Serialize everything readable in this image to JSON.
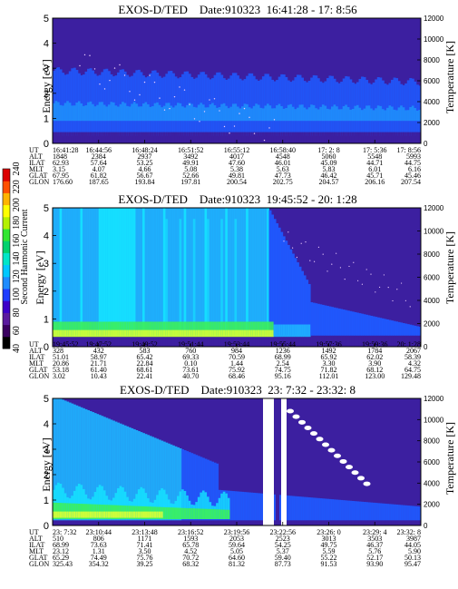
{
  "colorbar": {
    "label": "Second Harmonic Current",
    "ticks": [
      "40",
      "60",
      "80",
      "100",
      "120",
      "140",
      "160",
      "180",
      "200",
      "220",
      "240"
    ],
    "colors": [
      "#000000",
      "#3a0060",
      "#5a1a9e",
      "#3c00c8",
      "#1e3cff",
      "#1e8cff",
      "#00c8ff",
      "#00e6c8",
      "#00d26e",
      "#32e632",
      "#b4f000",
      "#ffff00",
      "#ffb400",
      "#ff5000",
      "#dc0000"
    ]
  },
  "palette": {
    "background": "#3c1fa0",
    "mid": "#1f5aff",
    "light": "#1eb4ff",
    "cyan": "#14e6ff",
    "green": "#3cf05a",
    "yellow": "#e6ff32",
    "white": "#ffffff"
  },
  "table_row_labels": [
    "UT",
    "ALT",
    "ILAT",
    "MLT",
    "GLAT",
    "GLON"
  ],
  "chart_data": [
    {
      "type": "heatmap",
      "title": "EXOS-D/TED    Date:910323  16:41:28 - 17: 8:56",
      "ylabel": "Energy [eV]",
      "y2label": "Temperature [K]",
      "ylim": [
        0,
        5
      ],
      "yticks": [
        "0",
        "1",
        "2",
        "3",
        "4",
        "5"
      ],
      "y2lim": [
        0,
        12000
      ],
      "y2ticks": [
        "0",
        "2000",
        "4000",
        "6000",
        "8000",
        "10000",
        "12000"
      ],
      "columns": [
        {
          "UT": "16:41:28",
          "ALT": "1848",
          "ILAT": "62.93",
          "MLT": "3.15",
          "GLAT": "67.95",
          "GLON": "176.60"
        },
        {
          "UT": "16:44:56",
          "ALT": "2384",
          "ILAT": "57.64",
          "MLT": "4.07",
          "GLAT": "61.82",
          "GLON": "187.65"
        },
        {
          "UT": "16:48:24",
          "ALT": "2937",
          "ILAT": "53.25",
          "MLT": "4.66",
          "GLAT": "56.67",
          "GLON": "193.84"
        },
        {
          "UT": "16:51:52",
          "ALT": "3492",
          "ILAT": "49.91",
          "MLT": "5.08",
          "GLAT": "52.66",
          "GLON": "197.81"
        },
        {
          "UT": "16:55:12",
          "ALT": "4017",
          "ILAT": "47.60",
          "MLT": "5.38",
          "GLAT": "49.81",
          "GLON": "200.54"
        },
        {
          "UT": "16:58:40",
          "ALT": "4548",
          "ILAT": "46.01",
          "MLT": "5.63",
          "GLAT": "47.73",
          "GLON": "202.75"
        },
        {
          "UT": "17: 2: 8",
          "ALT": "5060",
          "ILAT": "45.09",
          "MLT": "5.83",
          "GLAT": "46.42",
          "GLON": "204.57"
        },
        {
          "UT": "17: 5:36",
          "ALT": "5548",
          "ILAT": "44.71",
          "MLT": "6.01",
          "GLAT": "45.71",
          "GLON": "206.16"
        },
        {
          "UT": "17: 8:56",
          "ALT": "5993",
          "ILAT": "44.75",
          "MLT": "6.16",
          "GLAT": "45.46",
          "GLON": "207.54"
        }
      ]
    },
    {
      "type": "heatmap",
      "title": "EXOS-D/TED    Date:910323  19:45:52 - 20: 1:28",
      "ylabel": "Energy [eV]",
      "y2label": "Temperature [K]",
      "ylim": [
        0,
        5
      ],
      "yticks": [
        "0",
        "1",
        "2",
        "3",
        "4",
        "5"
      ],
      "y2lim": [
        0,
        12000
      ],
      "y2ticks": [
        "0",
        "2000",
        "4000",
        "6000",
        "8000",
        "10000",
        "12000"
      ],
      "columns": [
        {
          "UT": "19:45:52",
          "ALT": "328",
          "ILAT": "51.01",
          "MLT": "20.86",
          "GLAT": "53.18",
          "GLON": "3.02"
        },
        {
          "UT": "19:47:52",
          "ALT": "432",
          "ILAT": "58.97",
          "MLT": "21.71",
          "GLAT": "61.40",
          "GLON": "10.43"
        },
        {
          "UT": "19:49:52",
          "ALT": "583",
          "ILAT": "65.42",
          "MLT": "22.84",
          "GLAT": "68.61",
          "GLON": "22.41"
        },
        {
          "UT": "19:51:44",
          "ALT": "760",
          "ILAT": "69.33",
          "MLT": "0.10",
          "GLAT": "73.61",
          "GLON": "40.70"
        },
        {
          "UT": "19:53:44",
          "ALT": "984",
          "ILAT": "70.59",
          "MLT": "1.44",
          "GLAT": "75.92",
          "GLON": "68.46"
        },
        {
          "UT": "19:55:44",
          "ALT": "1236",
          "ILAT": "68.99",
          "MLT": "2.54",
          "GLAT": "74.75",
          "GLON": "95.16"
        },
        {
          "UT": "19:57:36",
          "ALT": "1492",
          "ILAT": "65.92",
          "MLT": "3.30",
          "GLAT": "71.82",
          "GLON": "112.01"
        },
        {
          "UT": "19:59:36",
          "ALT": "1784",
          "ILAT": "62.02",
          "MLT": "3.90",
          "GLAT": "68.12",
          "GLON": "123.00"
        },
        {
          "UT": "20: 1:28",
          "ALT": "2067",
          "ILAT": "58.39",
          "MLT": "4.32",
          "GLAT": "64.75",
          "GLON": "129.48"
        }
      ]
    },
    {
      "type": "heatmap",
      "title": "EXOS-D/TED    Date:910323  23: 7:32 - 23:32: 8",
      "ylabel": "Energy [eV]",
      "y2label": "Temperature [K]",
      "ylim": [
        0,
        5
      ],
      "yticks": [
        "0",
        "1",
        "2",
        "3",
        "4",
        "5"
      ],
      "y2lim": [
        0,
        12000
      ],
      "y2ticks": [
        "0",
        "2000",
        "4000",
        "6000",
        "8000",
        "10000",
        "12000"
      ],
      "columns": [
        {
          "UT": "23: 7:32",
          "ALT": "510",
          "ILAT": "68.99",
          "MLT": "23.12",
          "GLAT": "65.29",
          "GLON": "325.43"
        },
        {
          "UT": "23:10:44",
          "ALT": "806",
          "ILAT": "73.63",
          "MLT": "1.31",
          "GLAT": "74.49",
          "GLON": "354.32"
        },
        {
          "UT": "23:13:48",
          "ALT": "1171",
          "ILAT": "71.41",
          "MLT": "3.50",
          "GLAT": "75.76",
          "GLON": "39.25"
        },
        {
          "UT": "23:16:52",
          "ALT": "1593",
          "ILAT": "65.78",
          "MLT": "4.52",
          "GLAT": "70.72",
          "GLON": "68.32"
        },
        {
          "UT": "23:19:56",
          "ALT": "2053",
          "ILAT": "59.64",
          "MLT": "5.05",
          "GLAT": "64.60",
          "GLON": "81.32"
        },
        {
          "UT": "23:22:56",
          "ALT": "2523",
          "ILAT": "54.25",
          "MLT": "5.37",
          "GLAT": "59.40",
          "GLON": "87.73"
        },
        {
          "UT": "23:26: 0",
          "ALT": "3013",
          "ILAT": "49.75",
          "MLT": "5.59",
          "GLAT": "55.22",
          "GLON": "91.53"
        },
        {
          "UT": "23:29: 4",
          "ALT": "3503",
          "ILAT": "46.37",
          "MLT": "5.76",
          "GLAT": "52.17",
          "GLON": "93.90"
        },
        {
          "UT": "23:32: 8",
          "ALT": "3987",
          "ILAT": "44.05",
          "MLT": "5.90",
          "GLAT": "50.13",
          "GLON": "95.47"
        }
      ]
    }
  ]
}
